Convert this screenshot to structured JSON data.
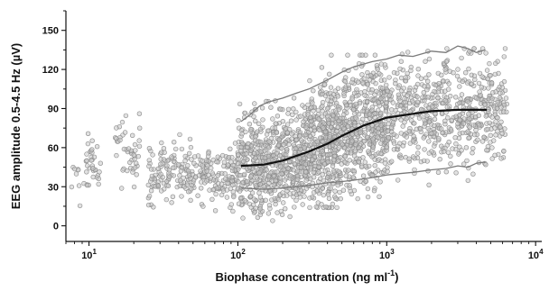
{
  "chart_data": {
    "type": "scatter",
    "xlabel": "Biophase concentration (ng ml",
    "xlabel_sup": "-1",
    "xlabel_tail": ")",
    "ylabel": "EEG amplitude 0.5-4.5 Hz (µV)",
    "x_scale": "log",
    "xlim": [
      7,
      11000
    ],
    "ylim": [
      -12,
      165
    ],
    "y_ticks": [
      0,
      30,
      60,
      90,
      120,
      150
    ],
    "x_ticks": [
      {
        "value": 10,
        "base": "10",
        "exp": "1"
      },
      {
        "value": 100,
        "base": "10",
        "exp": "2"
      },
      {
        "value": 1000,
        "base": "10",
        "exp": "3"
      },
      {
        "value": 10000,
        "base": "10",
        "exp": "4"
      }
    ],
    "grid": false,
    "series": [
      {
        "role": "median",
        "color": "#111111",
        "x": [
          105,
          150,
          200,
          300,
          400,
          500,
          700,
          1000,
          1500,
          2000,
          3000,
          4700
        ],
        "y": [
          46,
          47,
          50,
          57,
          63,
          69,
          77,
          83,
          86,
          88,
          89,
          89
        ]
      },
      {
        "role": "upper-percentile",
        "color": "#7a7a7a",
        "x": [
          105,
          120,
          140,
          160,
          200,
          250,
          300,
          400,
          500,
          600,
          800,
          1000,
          1200,
          1500,
          2000,
          2500,
          3000,
          3500,
          4000,
          4600
        ],
        "y": [
          80,
          85,
          92,
          95,
          98,
          102,
          105,
          112,
          118,
          122,
          126,
          128,
          131,
          130,
          134,
          133,
          138,
          136,
          133,
          135
        ]
      },
      {
        "role": "lower-percentile",
        "color": "#7a7a7a",
        "x": [
          105,
          150,
          200,
          300,
          400,
          500,
          600,
          800,
          1000,
          1200,
          1500,
          2000,
          2500,
          3000,
          3500,
          4000,
          4600
        ],
        "y": [
          29,
          28,
          29,
          31,
          33,
          34,
          35,
          37,
          39,
          40,
          41,
          43,
          44,
          46,
          45,
          48,
          49
        ]
      }
    ],
    "scatter_clusters": [
      {
        "xmin": 7.5,
        "xmax": 9,
        "ymin": 10,
        "ymax": 55,
        "n": 8
      },
      {
        "xmin": 9,
        "xmax": 12,
        "ymin": 25,
        "ymax": 70,
        "n": 35
      },
      {
        "xmin": 15,
        "xmax": 22,
        "ymin": 30,
        "ymax": 85,
        "n": 45
      },
      {
        "xmin": 25,
        "xmax": 100,
        "ymin": 15,
        "ymax": 65,
        "n": 260
      },
      {
        "xmin": 100,
        "xmax": 300,
        "ymin": 10,
        "ymax": 95,
        "n": 620
      },
      {
        "xmin": 300,
        "xmax": 1000,
        "ymin": 20,
        "ymax": 125,
        "n": 820
      },
      {
        "xmin": 1000,
        "xmax": 6500,
        "ymin": 35,
        "ymax": 130,
        "n": 600
      }
    ]
  }
}
